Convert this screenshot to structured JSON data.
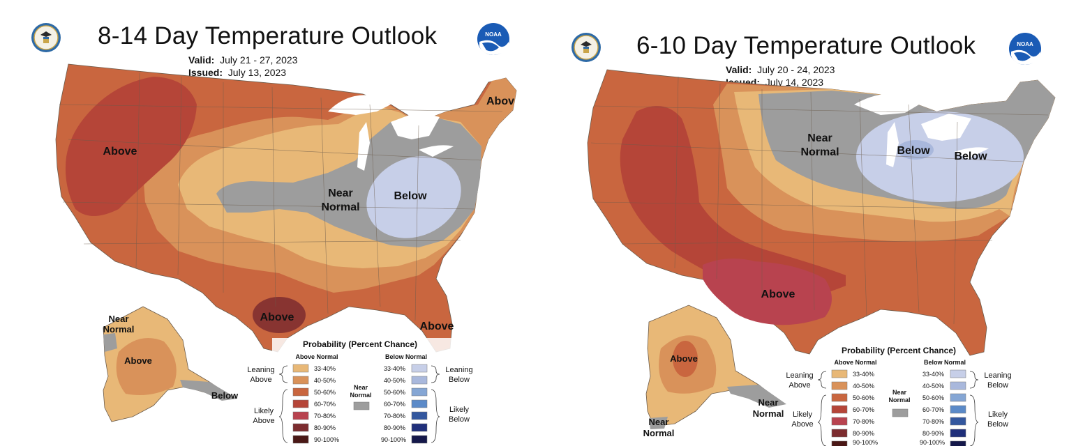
{
  "colors": {
    "above_33_40": "#e8b877",
    "above_40_50": "#d9925a",
    "above_50_60": "#c9663f",
    "above_60_70": "#b54538",
    "above_70_80": "#b8434f",
    "above_80_90": "#7c2c2f",
    "above_90_100": "#4a1816",
    "below_33_40": "#c7cfe8",
    "below_40_50": "#a9b8dc",
    "below_50_60": "#85a6d4",
    "below_60_70": "#5b8ac8",
    "below_70_80": "#33579e",
    "below_80_90": "#1f2f7a",
    "below_90_100": "#15184a",
    "near_normal": "#9d9d9d",
    "noaa_blue": "#1a5bb5"
  },
  "left": {
    "title": "8-14 Day Temperature Outlook",
    "valid_label": "Valid:",
    "valid_value": "July 21 - 27, 2023",
    "issued_label": "Issued:",
    "issued_value": "July 13, 2023",
    "noaa_text": "NOAA",
    "map_labels": {
      "above_west": "Above",
      "near_normal_1": "Near",
      "near_normal_2": "Normal",
      "below": "Below",
      "above_ne": "Abov",
      "above_tx": "Above",
      "above_fl": "Above",
      "ak_near_1": "Near",
      "ak_near_2": "Normal",
      "ak_above": "Above",
      "ak_below": "Below"
    },
    "legend": {
      "title": "Probability (Percent Chance)",
      "above_header": "Above Normal",
      "below_header": "Below Normal",
      "leaning_above_1": "Leaning",
      "leaning_above_2": "Above",
      "likely_above_1": "Likely",
      "likely_above_2": "Above",
      "leaning_below_1": "Leaning",
      "leaning_below_2": "Below",
      "likely_below_1": "Likely",
      "likely_below_2": "Below",
      "near_1": "Near",
      "near_2": "Normal",
      "ranges": [
        "33-40%",
        "40-50%",
        "50-60%",
        "60-70%",
        "70-80%",
        "80-90%",
        "90-100%"
      ]
    }
  },
  "right": {
    "title": "6-10 Day Temperature Outlook",
    "valid_label": "Valid:",
    "valid_value": "July 20 - 24, 2023",
    "issued_label": "Issued:",
    "issued_value": "July 14, 2023",
    "noaa_text": "NOAA",
    "map_labels": {
      "near_normal_1": "Near",
      "near_normal_2": "Normal",
      "below_1": "Below",
      "below_2": "Below",
      "above_sw": "Above",
      "ak_above": "Above",
      "ak_near_1": "Near",
      "ak_near_2": "Normal",
      "ak_near_b1": "Near",
      "ak_near_b2": "Normal"
    },
    "legend": {
      "title": "Probability (Percent Chance)",
      "above_header": "Above Normal",
      "below_header": "Below Normal",
      "leaning_above_1": "Leaning",
      "leaning_above_2": "Above",
      "likely_above_1": "Likely",
      "likely_above_2": "Above",
      "leaning_below_1": "Leaning",
      "leaning_below_2": "Below",
      "likely_below_1": "Likely",
      "likely_below_2": "Below",
      "near_1": "Near",
      "near_2": "Normal",
      "ranges": [
        "33-40%",
        "40-50%",
        "50-60%",
        "60-70%",
        "70-80%",
        "80-90%",
        "90-100%"
      ]
    }
  }
}
